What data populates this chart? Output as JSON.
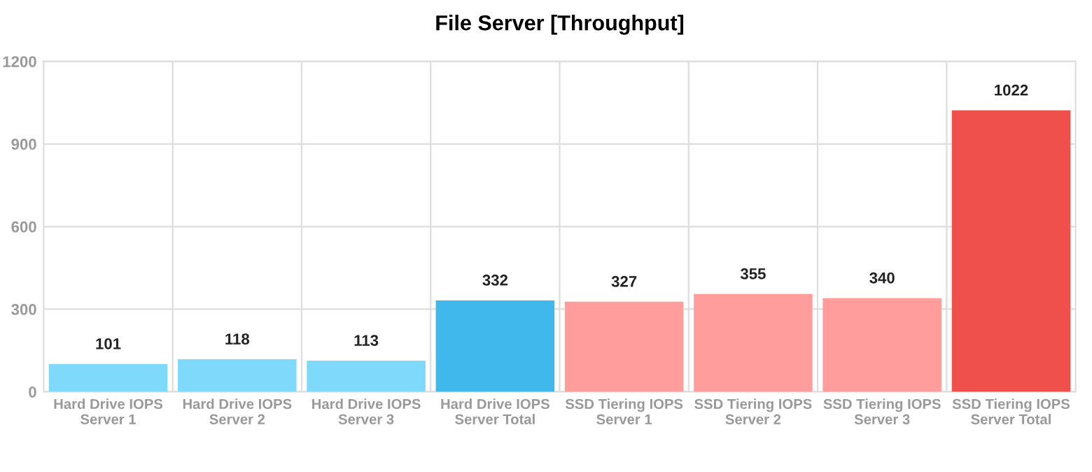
{
  "chart_data": {
    "type": "bar",
    "title": "File Server [Throughput]",
    "categories": [
      "Hard Drive IOPS\nServer 1",
      "Hard Drive IOPS\nServer 2",
      "Hard Drive IOPS\nServer 3",
      "Hard Drive IOPS\nServer Total",
      "SSD Tiering IOPS\nServer 1",
      "SSD Tiering IOPS\nServer 2",
      "SSD Tiering IOPS\nServer 3",
      "SSD Tiering IOPS\nServer Total"
    ],
    "values": [
      101,
      118,
      113,
      332,
      327,
      355,
      340,
      1022
    ],
    "colors": [
      "#7fd9fb",
      "#7fd9fb",
      "#7fd9fb",
      "#41b8ec",
      "#ff9c9c",
      "#ff9c9c",
      "#ff9c9c",
      "#f0504b"
    ],
    "ylim": [
      0,
      1200
    ],
    "yticks": [
      0,
      300,
      600,
      900,
      1200
    ],
    "grid": true,
    "data_labels": true
  }
}
